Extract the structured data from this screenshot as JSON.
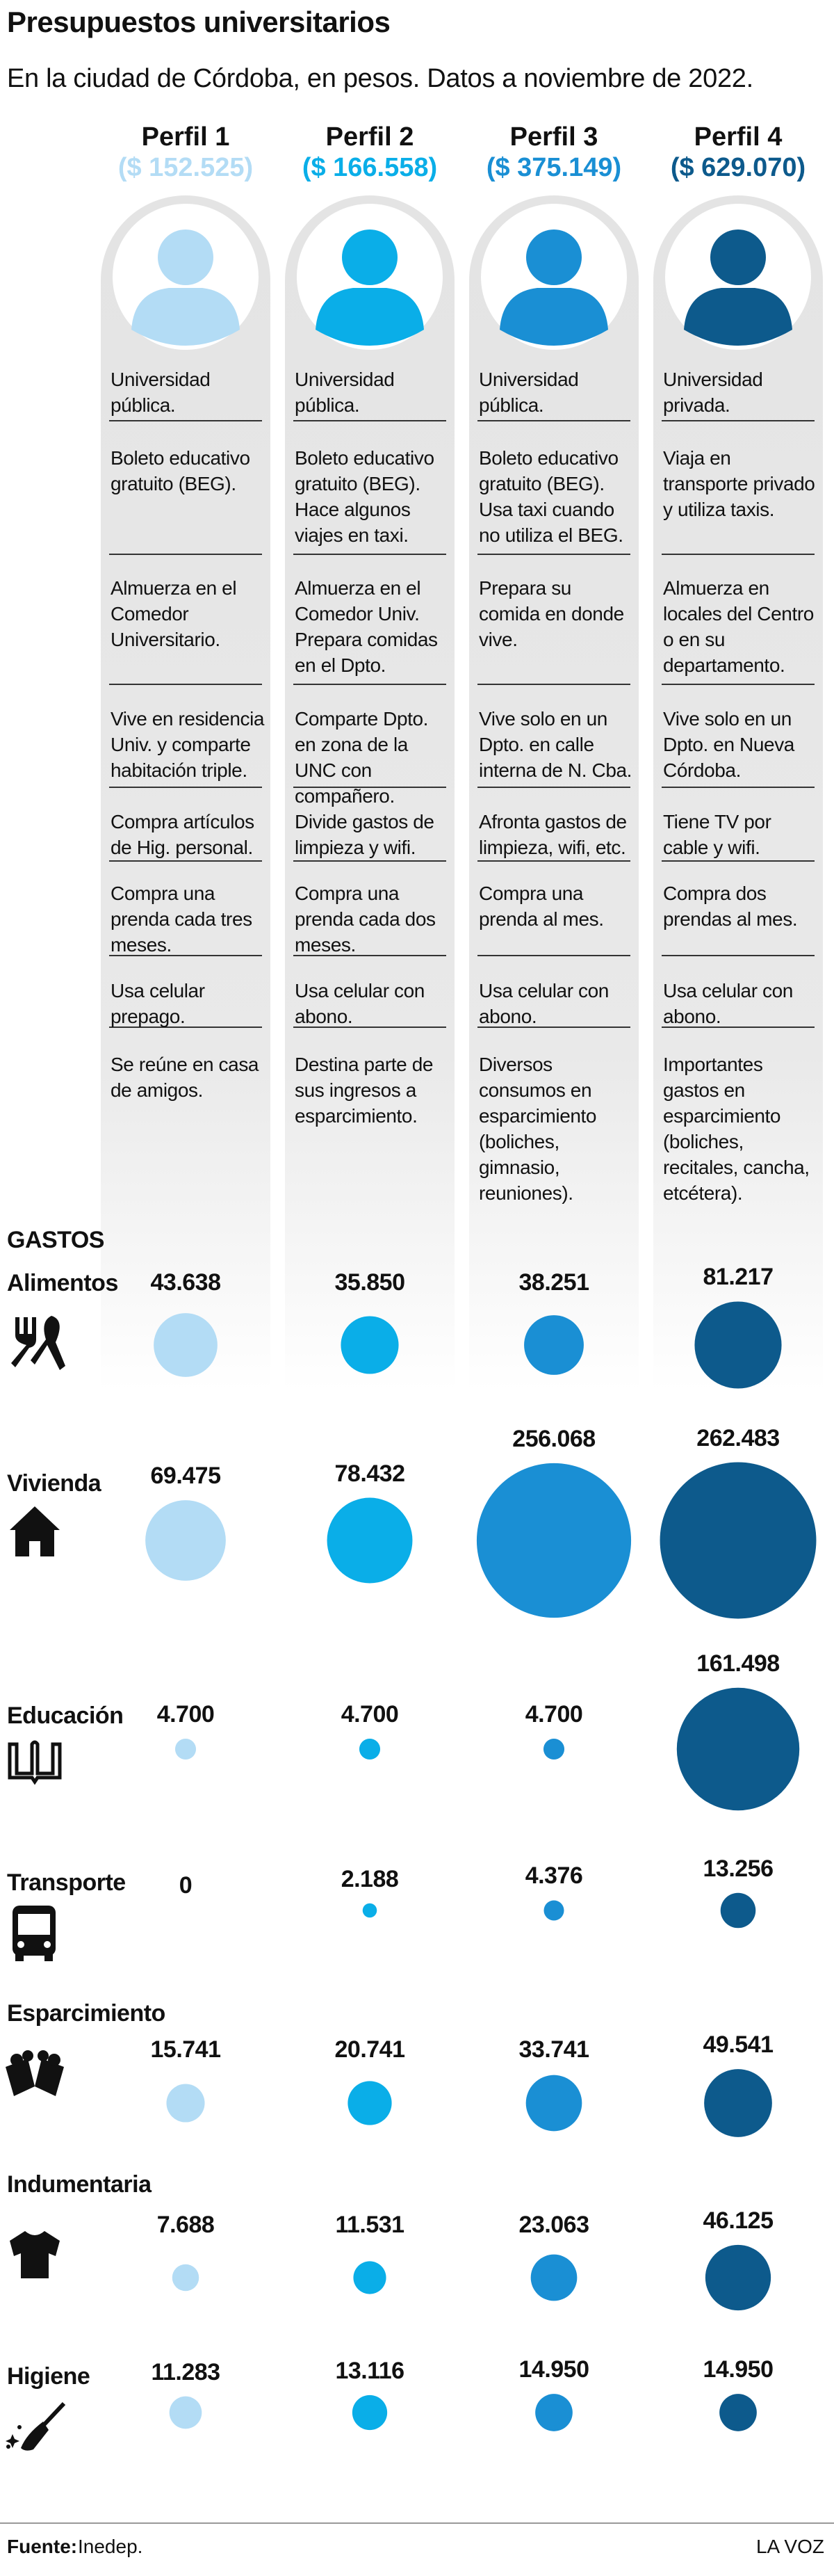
{
  "chart_data": {
    "type": "bubble",
    "title": "Presupuestos universitarios",
    "subtitle": "En la ciudad de Córdoba, en pesos. Datos a noviembre de 2022.",
    "expenses_label": "GASTOS",
    "categories": [
      "Alimentos",
      "Vivienda",
      "Educación",
      "Transporte",
      "Esparcimiento",
      "Indumentaria",
      "Higiene"
    ],
    "series": [
      {
        "name": "Perfil 1",
        "total": 152525,
        "total_label": "($ 152.525)",
        "color": "#b3dcf5",
        "profile": [
          "Universidad pública.",
          "Boleto educativo gratuito (BEG).",
          "Almuerza en el Comedor Universitario.",
          "Vive en residencia Univ. y comparte habitación triple.",
          "Compra artículos de Hig. personal.",
          "Compra una prenda cada tres meses.",
          "Usa celular prepago.",
          "Se reúne en casa de amigos."
        ],
        "values": [
          43638,
          69475,
          4700,
          0,
          15741,
          7688,
          11283
        ],
        "value_labels": [
          "43.638",
          "69.475",
          "4.700",
          "0",
          "15.741",
          "7.688",
          "11.283"
        ]
      },
      {
        "name": "Perfil 2",
        "total": 166558,
        "total_label": "($ 166.558)",
        "color": "#0aaee8",
        "profile": [
          "Universidad pública.",
          "Boleto educativo gratuito (BEG). Hace algunos viajes en taxi.",
          "Almuerza en el Comedor Univ. Prepara comidas en el Dpto.",
          "Comparte Dpto. en zona de la UNC con compañero.",
          "Divide gastos de limpieza y wifi.",
          "Compra una prenda cada dos meses.",
          "Usa celular con abono.",
          "Destina parte de sus ingresos a esparcimiento."
        ],
        "values": [
          35850,
          78432,
          4700,
          2188,
          20741,
          11531,
          13116
        ],
        "value_labels": [
          "35.850",
          "78.432",
          "4.700",
          "2.188",
          "20.741",
          "11.531",
          "13.116"
        ]
      },
      {
        "name": "Perfil 3",
        "total": 375149,
        "total_label": "($ 375.149)",
        "color": "#1a8fd4",
        "profile": [
          "Universidad pública.",
          "Boleto educativo gratuito (BEG). Usa taxi cuando no utiliza el BEG.",
          "Prepara su comida en donde vive.",
          "Vive solo en un Dpto. en calle interna de N. Cba.",
          "Afronta gastos de limpieza, wifi, etc.",
          "Compra una prenda al mes.",
          "Usa celular con abono.",
          "Diversos consumos en esparcimiento (boliches, gimnasio, reuniones)."
        ],
        "values": [
          38251,
          256068,
          4700,
          4376,
          33741,
          23063,
          14950
        ],
        "value_labels": [
          "38.251",
          "256.068",
          "4.700",
          "4.376",
          "33.741",
          "23.063",
          "14.950"
        ]
      },
      {
        "name": "Perfil 4",
        "total": 629070,
        "total_label": "($ 629.070)",
        "color": "#0d5a8c",
        "profile": [
          "Universidad privada.",
          "Viaja en transporte privado y utiliza taxis.",
          "Almuerza en locales del Centro o en su departamento.",
          "Vive solo en un Dpto. en Nueva Córdoba.",
          "Tiene TV por cable y wifi.",
          "Compra dos prendas al mes.",
          "Usa celular con abono.",
          "Importantes gastos en esparcimiento (boliches, recitales, cancha, etcétera)."
        ],
        "values": [
          81217,
          262483,
          161498,
          13256,
          49541,
          46125,
          14950
        ],
        "value_labels": [
          "81.217",
          "262.483",
          "161.498",
          "13.256",
          "49.541",
          "46.125",
          "14.950"
        ]
      }
    ],
    "source_label": "Fuente:",
    "source": "Inedep.",
    "brand": "LA VOZ"
  }
}
